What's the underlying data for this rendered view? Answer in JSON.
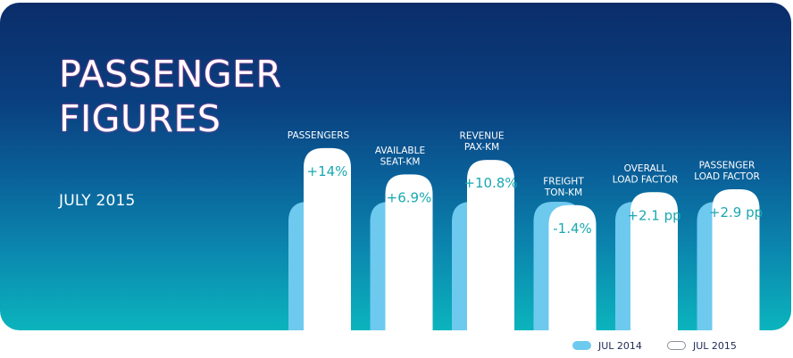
{
  "title": [
    "PASSENGER",
    "FIGURES"
  ],
  "subtitle": "JULY 2015",
  "colors": {
    "jul_2014": "#6ec9ef",
    "jul_2015": "#ffffff",
    "value_text": "#1aa8b0"
  },
  "legend": [
    {
      "label": "JUL 2014",
      "style": "filled",
      "color": "#6ec9ef"
    },
    {
      "label": "JUL 2015",
      "style": "outlined",
      "color": "#ffffff"
    }
  ],
  "chart_data": {
    "type": "bar",
    "categories": [
      [
        "PASSENGERS"
      ],
      [
        "AVAILABLE",
        "SEAT-KM"
      ],
      [
        "REVENUE",
        "PAX-KM"
      ],
      [
        "FREIGHT",
        "TON-KM"
      ],
      [
        "OVERALL",
        "LOAD FACTOR"
      ],
      [
        "PASSENGER",
        "LOAD FACTOR"
      ]
    ],
    "series": [
      {
        "name": "JUL 2014",
        "values": [
          100,
          100,
          100,
          100,
          100,
          100
        ]
      },
      {
        "name": "JUL 2015",
        "values": [
          114,
          106.9,
          110.8,
          98.6,
          102.1,
          102.9
        ]
      }
    ],
    "change_labels": [
      "+14%",
      "+6.9%",
      "+10.8%",
      "-1.4%",
      "+2.1 pp",
      "+2.9 pp"
    ],
    "legend_placement": "bottom-right"
  }
}
